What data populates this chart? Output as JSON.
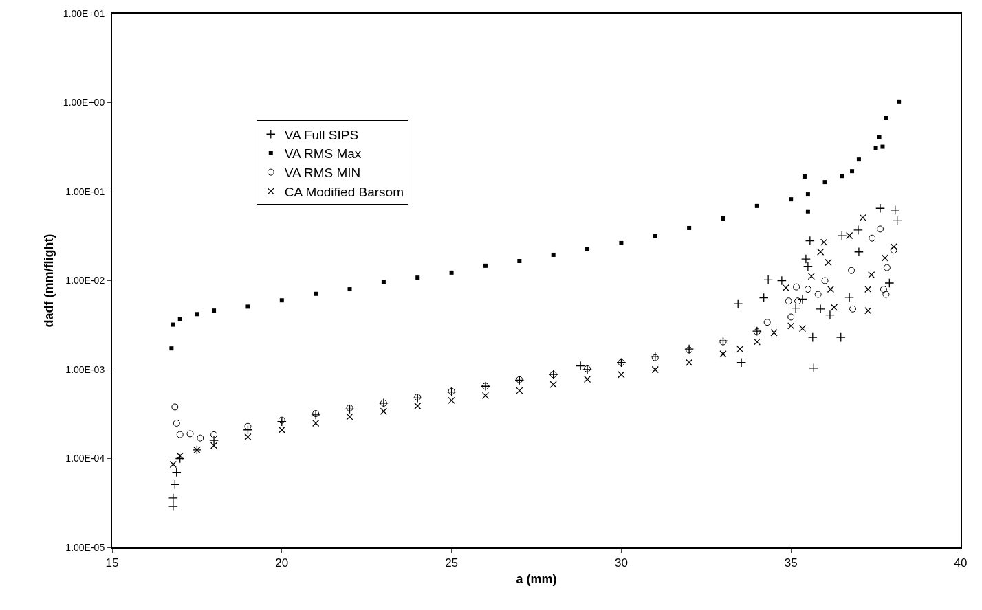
{
  "chart_data": {
    "type": "scatter",
    "xlabel": "a (mm)",
    "ylabel": "dadf (mm/flight)",
    "log": "y",
    "grid": false,
    "legend": "top left",
    "xlim": [
      15,
      40
    ],
    "xticks": [
      15,
      20,
      25,
      30,
      35,
      40
    ],
    "ylim": [
      1e-05,
      10
    ],
    "yticks": [
      {
        "value": 1e-05,
        "label": "1.00E-05"
      },
      {
        "value": 0.0001,
        "label": "1.00E-04"
      },
      {
        "value": 0.001,
        "label": "1.00E-03"
      },
      {
        "value": 0.01,
        "label": "1.00E-02"
      },
      {
        "value": 0.1,
        "label": "1.00E-01"
      },
      {
        "value": 1,
        "label": "1.00E+00"
      },
      {
        "value": 10,
        "label": "1.00E+01"
      }
    ],
    "series": [
      {
        "name": "VA Full SIPS",
        "color": "#000000",
        "marker": "plus",
        "x": [
          16.8,
          16.8,
          16.85,
          16.9,
          17,
          17.5,
          18,
          19,
          20,
          21,
          22,
          23,
          24,
          25,
          26,
          27,
          28,
          28.8,
          29,
          30,
          31,
          32,
          33,
          33.44,
          33.54,
          34,
          34.2,
          34.33,
          34.73,
          35.14,
          35.34,
          35.44,
          35.5,
          35.56,
          35.64,
          35.67,
          35.87,
          36.15,
          36.47,
          36.5,
          36.72,
          36.98,
          37.0,
          37.63,
          37.9,
          38.07,
          38.13
        ],
        "values": [
          2.9e-05,
          3.6e-05,
          5.1e-05,
          7e-05,
          0.0001,
          0.000125,
          0.00016,
          0.00021,
          0.00026,
          0.00031,
          0.00036,
          0.00042,
          0.00048,
          0.00056,
          0.00065,
          0.00076,
          0.00088,
          0.0011,
          0.001,
          0.0012,
          0.0014,
          0.0017,
          0.0021,
          0.0055,
          0.0012,
          0.0027,
          0.0064,
          0.0102,
          0.01,
          0.0049,
          0.0062,
          0.0175,
          0.0145,
          0.028,
          0.0023,
          0.00104,
          0.0048,
          0.0041,
          0.0023,
          0.032,
          0.0065,
          0.037,
          0.021,
          0.065,
          0.0094,
          0.062,
          0.047
        ]
      },
      {
        "name": "VA RMS Max",
        "color": "#000000",
        "marker": "square",
        "x": [
          16.75,
          16.8,
          17,
          17.5,
          18,
          19,
          20,
          21,
          22,
          23,
          24,
          25,
          26,
          27,
          28,
          29,
          30,
          31,
          32,
          33,
          34,
          35,
          35.4,
          35.5,
          35.5,
          36,
          36.5,
          36.8,
          37,
          37.5,
          37.6,
          37.7,
          37.8,
          38.18
        ],
        "values": [
          0.00173,
          0.0032,
          0.0037,
          0.0042,
          0.0046,
          0.0051,
          0.006,
          0.0071,
          0.008,
          0.0096,
          0.0108,
          0.0123,
          0.0147,
          0.0166,
          0.0195,
          0.0225,
          0.0264,
          0.0315,
          0.039,
          0.05,
          0.069,
          0.082,
          0.148,
          0.093,
          0.06,
          0.128,
          0.15,
          0.17,
          0.23,
          0.31,
          0.41,
          0.32,
          0.67,
          1.03
        ]
      },
      {
        "name": "VA RMS MIN",
        "color": "#000000",
        "marker": "circle",
        "x": [
          16.85,
          16.9,
          17,
          17.3,
          17.6,
          18,
          19,
          20,
          21,
          22,
          23,
          24,
          25,
          26,
          27,
          28,
          29,
          30,
          31,
          32,
          33,
          34,
          34.3,
          34.93,
          35,
          35.16,
          35.2,
          35.5,
          35.8,
          36.0,
          36.78,
          36.82,
          37.39,
          37.63,
          37.73,
          37.8,
          37.83,
          38.03
        ],
        "values": [
          0.00038,
          0.00025,
          0.000186,
          0.00019,
          0.00017,
          0.000185,
          0.00023,
          0.00027,
          0.00032,
          0.00037,
          0.00042,
          0.00049,
          0.00057,
          0.00065,
          0.00077,
          0.00088,
          0.00102,
          0.0012,
          0.00136,
          0.00166,
          0.00205,
          0.00266,
          0.0034,
          0.0059,
          0.0039,
          0.0085,
          0.0059,
          0.008,
          0.007,
          0.01,
          0.013,
          0.0048,
          0.03,
          0.038,
          0.008,
          0.007,
          0.014,
          0.022
        ]
      },
      {
        "name": "CA Modified Barsom",
        "color": "#000000",
        "marker": "cross",
        "x": [
          16.8,
          17,
          17.5,
          18,
          19,
          20,
          21,
          22,
          23,
          24,
          25,
          26,
          27,
          28,
          29,
          30,
          31,
          32,
          33,
          33.5,
          34,
          34.5,
          34.85,
          35,
          35.34,
          35.6,
          35.87,
          35.97,
          36.1,
          36.17,
          36.27,
          36.72,
          37.12,
          37.27,
          37.27,
          37.37,
          37.77,
          38.03
        ],
        "values": [
          8.6e-05,
          0.000107,
          0.000125,
          0.00014,
          0.000175,
          0.00021,
          0.00025,
          0.000295,
          0.00034,
          0.00039,
          0.00045,
          0.00051,
          0.00058,
          0.00068,
          0.00078,
          0.00088,
          0.001,
          0.0012,
          0.0015,
          0.0017,
          0.00205,
          0.0026,
          0.0083,
          0.0031,
          0.0029,
          0.0112,
          0.021,
          0.027,
          0.016,
          0.008,
          0.005,
          0.032,
          0.051,
          0.0046,
          0.008,
          0.0116,
          0.018,
          0.024
        ]
      }
    ]
  }
}
